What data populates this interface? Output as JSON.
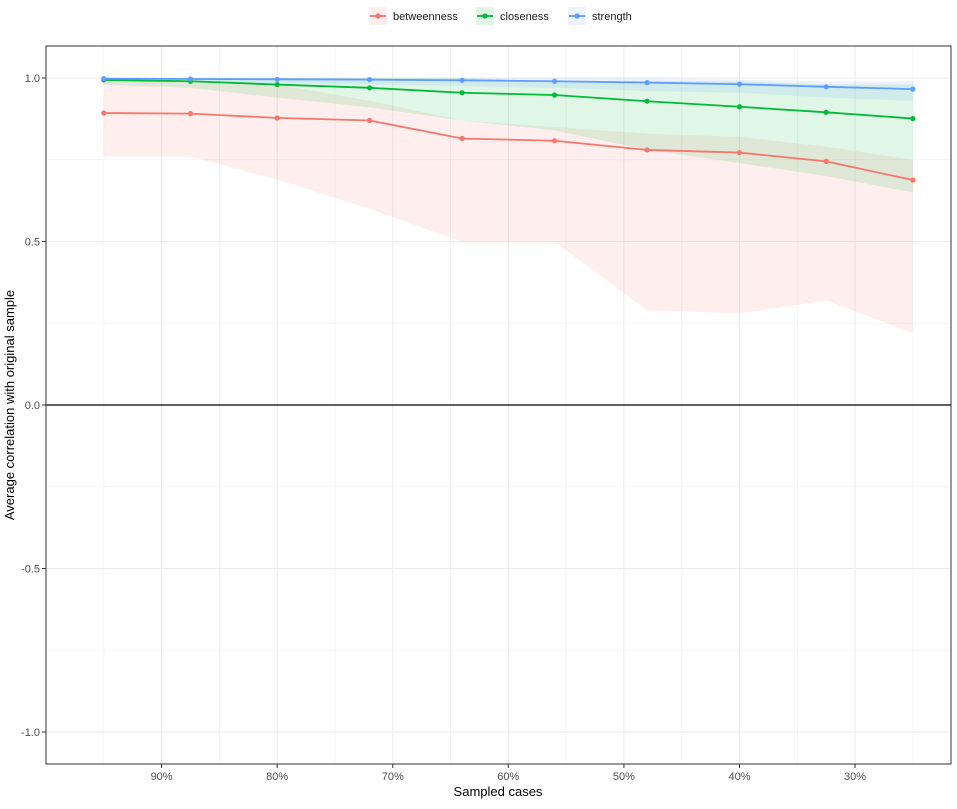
{
  "chart_data": {
    "type": "line",
    "xlabel": "Sampled cases",
    "ylabel": "Average correlation with original sample",
    "x_direction": "descending",
    "xlim": [
      0.217,
      1.0
    ],
    "ylim": [
      -1.0,
      1.0
    ],
    "x_ticks": [
      0.9,
      0.8,
      0.7,
      0.6,
      0.5,
      0.4,
      0.3
    ],
    "x_tick_labels": [
      "90%",
      "80%",
      "70%",
      "60%",
      "50%",
      "40%",
      "30%"
    ],
    "y_ticks": [
      -1.0,
      -0.5,
      0.0,
      0.5,
      1.0
    ],
    "y_tick_labels": [
      "-1.0",
      "-0.5",
      "0.0",
      "0.5",
      "1.0"
    ],
    "grid": true,
    "reference_line": 0.0,
    "legend_position": "top",
    "x": [
      0.95,
      0.875,
      0.8,
      0.72,
      0.64,
      0.56,
      0.48,
      0.4,
      0.325,
      0.25
    ],
    "series": [
      {
        "name": "betweenness",
        "color": "#F8766D",
        "band_color": "#FDE8E6",
        "values": [
          0.893,
          0.891,
          0.878,
          0.87,
          0.815,
          0.808,
          0.78,
          0.772,
          0.745,
          0.688
        ],
        "lower": [
          0.76,
          0.76,
          0.69,
          0.6,
          0.5,
          0.5,
          0.29,
          0.28,
          0.32,
          0.22
        ],
        "upper": [
          0.99,
          0.99,
          0.98,
          0.93,
          0.87,
          0.85,
          0.83,
          0.82,
          0.79,
          0.75
        ]
      },
      {
        "name": "closeness",
        "color": "#00BA38",
        "band_color": "#E3EEDF",
        "values": [
          0.994,
          0.99,
          0.98,
          0.97,
          0.955,
          0.948,
          0.929,
          0.912,
          0.895,
          0.876
        ],
        "lower": [
          0.98,
          0.97,
          0.94,
          0.91,
          0.87,
          0.84,
          0.78,
          0.74,
          0.7,
          0.65
        ],
        "upper": [
          1.0,
          1.0,
          1.0,
          1.0,
          1.0,
          0.99,
          0.99,
          0.99,
          0.98,
          0.98
        ]
      },
      {
        "name": "strength",
        "color": "#619CFF",
        "band_color": "#DCE6EE",
        "values": [
          0.998,
          0.997,
          0.996,
          0.995,
          0.993,
          0.99,
          0.986,
          0.981,
          0.973,
          0.966
        ],
        "lower": [
          0.99,
          0.99,
          0.985,
          0.98,
          0.975,
          0.97,
          0.96,
          0.955,
          0.94,
          0.93
        ],
        "upper": [
          1.0,
          1.0,
          1.0,
          1.0,
          1.0,
          1.0,
          1.0,
          0.995,
          0.99,
          0.99
        ]
      }
    ]
  }
}
